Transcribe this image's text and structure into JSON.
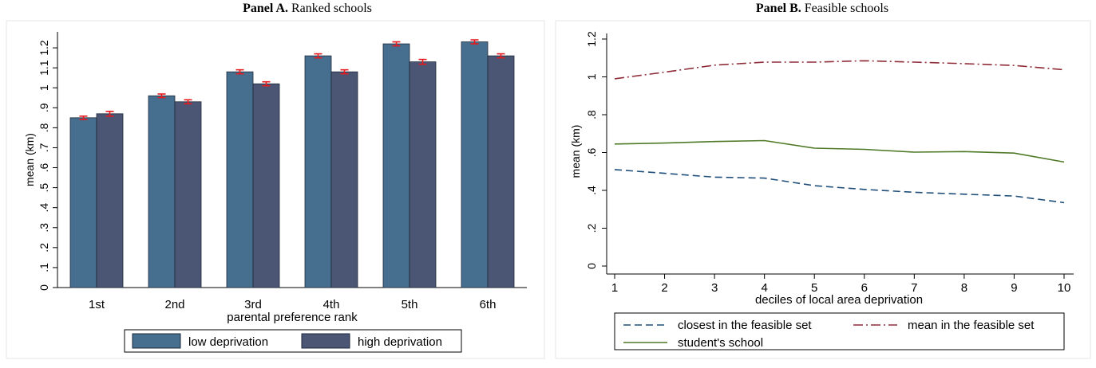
{
  "panel_a": {
    "prefix": "Panel A.",
    "rest": "Ranked schools"
  },
  "panel_b": {
    "prefix": "Panel B.",
    "rest": "Feasible schools"
  },
  "colors": {
    "low_deprivation": "#456e8f",
    "high_deprivation": "#4a5674",
    "error_bar": "#e8191d",
    "closest": "#1f4e79",
    "mean": "#8e2c38",
    "student": "#4e7a27"
  },
  "chart_data": [
    {
      "type": "bar",
      "xlabel": "parental preference rank",
      "ylabel": "mean (km)",
      "categories": [
        "1st",
        "2nd",
        "3rd",
        "4th",
        "5th",
        "6th"
      ],
      "yticks": [
        "0",
        ".1",
        ".2",
        ".3",
        ".4",
        ".5",
        ".6",
        ".7",
        ".8",
        ".9",
        "1",
        "1.1",
        "1.2"
      ],
      "ylim": [
        0,
        1.28
      ],
      "series": [
        {
          "name": "low deprivation",
          "values": [
            0.85,
            0.96,
            1.08,
            1.16,
            1.22,
            1.23
          ],
          "err": [
            0.008,
            0.009,
            0.01,
            0.01,
            0.01,
            0.01
          ]
        },
        {
          "name": "high deprivation",
          "values": [
            0.87,
            0.93,
            1.02,
            1.08,
            1.13,
            1.16
          ],
          "err": [
            0.012,
            0.01,
            0.01,
            0.01,
            0.012,
            0.01
          ]
        }
      ],
      "legend_position": "bottom"
    },
    {
      "type": "line",
      "xlabel": "deciles of local area deprivation",
      "ylabel": "mean (km)",
      "x": [
        1,
        2,
        3,
        4,
        5,
        6,
        7,
        8,
        9,
        10
      ],
      "xticks": [
        "1",
        "2",
        "3",
        "4",
        "5",
        "6",
        "7",
        "8",
        "9",
        "10"
      ],
      "yticks": [
        "0",
        ".2",
        ".4",
        ".6",
        ".8",
        "1",
        "1.2"
      ],
      "ylim": [
        0,
        1.2
      ],
      "series": [
        {
          "name": "closest in the feasible set",
          "style": "dashed",
          "values": [
            0.51,
            0.49,
            0.47,
            0.465,
            0.425,
            0.405,
            0.39,
            0.38,
            0.37,
            0.335
          ]
        },
        {
          "name": "mean in the feasible set",
          "style": "dash-dot",
          "values": [
            0.99,
            1.025,
            1.062,
            1.078,
            1.078,
            1.085,
            1.078,
            1.07,
            1.06,
            1.038
          ]
        },
        {
          "name": "student's school",
          "style": "solid",
          "values": [
            0.645,
            0.65,
            0.658,
            0.663,
            0.623,
            0.617,
            0.602,
            0.605,
            0.597,
            0.55
          ]
        }
      ],
      "legend_position": "bottom"
    }
  ]
}
